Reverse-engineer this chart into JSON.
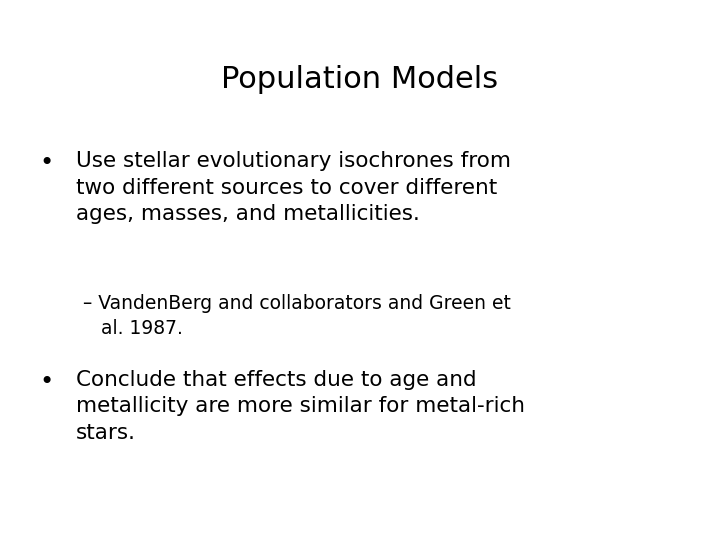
{
  "title": "Population Models",
  "background_color": "#ffffff",
  "text_color": "#000000",
  "title_fontsize": 22,
  "body_fontsize": 15.5,
  "sub_fontsize": 13.5,
  "bullet1": "Use stellar evolutionary isochrones from\ntwo different sources to cover different\nages, masses, and metallicities.",
  "sub1": "– VandenBerg and collaborators and Green et\n   al. 1987.",
  "bullet2": "Conclude that effects due to age and\nmetallicity are more similar for metal-rich\nstars.",
  "font_family": "DejaVu Sans"
}
